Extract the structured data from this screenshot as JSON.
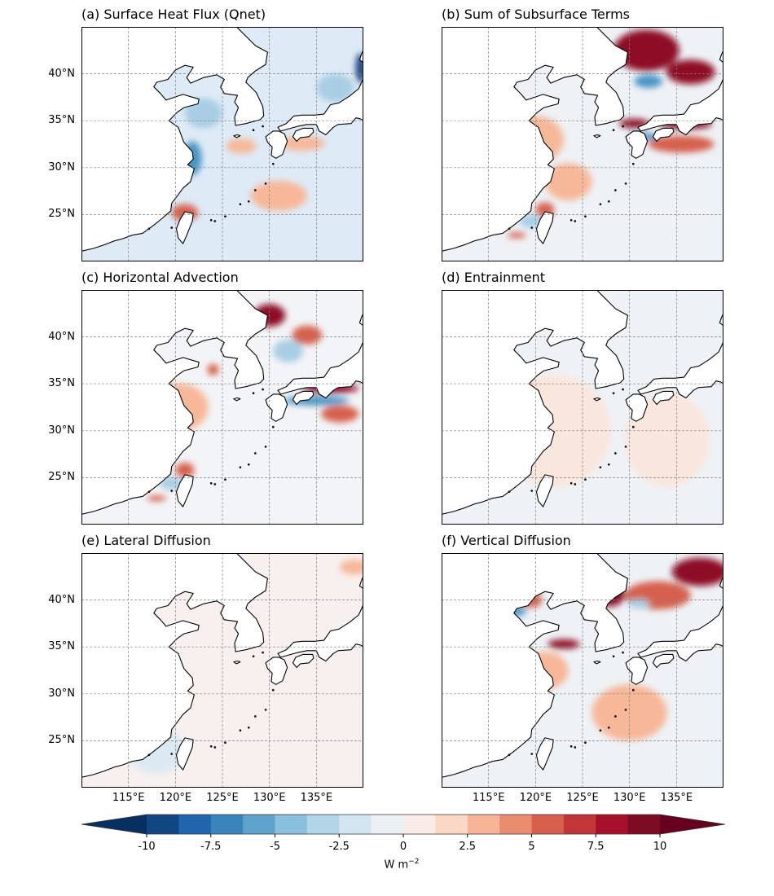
{
  "figure": {
    "panels": [
      {
        "id": "a",
        "title": "(a) Surface Heat Flux (Qnet)",
        "background": "#deebf7",
        "patches": [
          {
            "kind": "warm",
            "level": 2,
            "lon": 121.0,
            "lat": 25.2,
            "rlon": 1.4,
            "rlat": 0.9
          },
          {
            "kind": "warm",
            "level": 1,
            "lon": 127.0,
            "lat": 32.3,
            "rlon": 1.6,
            "rlat": 0.8
          },
          {
            "kind": "warm",
            "level": 1,
            "lon": 133.5,
            "lat": 32.6,
            "rlon": 2.4,
            "rlat": 0.8
          },
          {
            "kind": "cool",
            "level": 2,
            "lon": 121.8,
            "lat": 31.0,
            "rlon": 1.0,
            "rlat": 1.8
          },
          {
            "kind": "cool",
            "level": 1,
            "lon": 123.0,
            "lat": 35.8,
            "rlon": 2.0,
            "rlat": 1.6
          },
          {
            "kind": "cool",
            "level": 3,
            "lon": 139.7,
            "lat": 40.6,
            "rlon": 0.5,
            "rlat": 1.6
          },
          {
            "kind": "cool",
            "level": 1,
            "lon": 137.0,
            "lat": 38.5,
            "rlon": 2.0,
            "rlat": 1.5
          },
          {
            "kind": "warm",
            "level": 1,
            "lon": 131.0,
            "lat": 27.0,
            "rlon": 3.0,
            "rlat": 1.6
          }
        ]
      },
      {
        "id": "b",
        "title": "(b) Sum of Subsurface Terms",
        "background": "#eef2f6",
        "patches": [
          {
            "kind": "warm",
            "level": 3,
            "lon": 131.8,
            "lat": 42.5,
            "rlon": 3.5,
            "rlat": 2.2
          },
          {
            "kind": "warm",
            "level": 3,
            "lon": 136.5,
            "lat": 40.2,
            "rlon": 2.6,
            "rlat": 1.3
          },
          {
            "kind": "warm",
            "level": 3,
            "lon": 130.5,
            "lat": 34.7,
            "rlon": 1.6,
            "rlat": 0.5
          },
          {
            "kind": "warm",
            "level": 3,
            "lon": 136.0,
            "lat": 34.6,
            "rlon": 2.8,
            "rlat": 0.5
          },
          {
            "kind": "warm",
            "level": 2,
            "lon": 135.5,
            "lat": 32.5,
            "rlon": 3.5,
            "rlat": 0.9
          },
          {
            "kind": "warm",
            "level": 1,
            "lon": 120.0,
            "lat": 33.0,
            "rlon": 3.0,
            "rlat": 2.5
          },
          {
            "kind": "warm",
            "level": 1,
            "lon": 123.5,
            "lat": 28.5,
            "rlon": 2.5,
            "rlat": 2.0
          },
          {
            "kind": "warm",
            "level": 2,
            "lon": 121.0,
            "lat": 25.5,
            "rlon": 1.0,
            "rlat": 0.8
          },
          {
            "kind": "cool",
            "level": 2,
            "lon": 132.0,
            "lat": 39.2,
            "rlon": 1.5,
            "rlat": 0.7
          },
          {
            "kind": "cool",
            "level": 2,
            "lon": 131.5,
            "lat": 33.3,
            "rlon": 1.6,
            "rlat": 0.4
          },
          {
            "kind": "cool",
            "level": 1,
            "lon": 119.5,
            "lat": 24.3,
            "rlon": 1.2,
            "rlat": 0.7
          },
          {
            "kind": "warm",
            "level": 2,
            "lon": 118.0,
            "lat": 22.8,
            "rlon": 1.0,
            "rlat": 0.3
          },
          {
            "kind": "cool",
            "level": 1,
            "lon": 117.0,
            "lat": 38.8,
            "rlon": 0.9,
            "rlat": 0.5
          }
        ]
      },
      {
        "id": "c",
        "title": "(c) Horizontal Advection",
        "background": "#f3f4f7",
        "patches": [
          {
            "kind": "warm",
            "level": 3,
            "lon": 130.0,
            "lat": 42.3,
            "rlon": 1.7,
            "rlat": 1.2
          },
          {
            "kind": "warm",
            "level": 2,
            "lon": 134.0,
            "lat": 40.2,
            "rlon": 1.6,
            "rlat": 1.0
          },
          {
            "kind": "cool",
            "level": 1,
            "lon": 132.0,
            "lat": 38.5,
            "rlon": 1.6,
            "rlat": 1.2
          },
          {
            "kind": "warm",
            "level": 3,
            "lon": 136.5,
            "lat": 34.5,
            "rlon": 3.0,
            "rlat": 0.5
          },
          {
            "kind": "cool",
            "level": 2,
            "lon": 135.0,
            "lat": 33.2,
            "rlon": 3.5,
            "rlat": 0.5
          },
          {
            "kind": "warm",
            "level": 2,
            "lon": 137.5,
            "lat": 31.8,
            "rlon": 2.0,
            "rlat": 0.9
          },
          {
            "kind": "warm",
            "level": 1,
            "lon": 120.5,
            "lat": 32.5,
            "rlon": 3.0,
            "rlat": 2.5
          },
          {
            "kind": "warm",
            "level": 2,
            "lon": 121.0,
            "lat": 25.8,
            "rlon": 1.0,
            "rlat": 0.8
          },
          {
            "kind": "cool",
            "level": 1,
            "lon": 119.5,
            "lat": 24.4,
            "rlon": 1.2,
            "rlat": 0.7
          },
          {
            "kind": "warm",
            "level": 2,
            "lon": 118.0,
            "lat": 22.8,
            "rlon": 1.0,
            "rlat": 0.3
          },
          {
            "kind": "warm",
            "level": 2,
            "lon": 124.0,
            "lat": 36.5,
            "rlon": 0.6,
            "rlat": 0.6
          }
        ]
      },
      {
        "id": "d",
        "title": "(d) Entrainment",
        "background": "#eef2f6",
        "patches": [
          {
            "kind": "warm",
            "level": 0,
            "lon": 122.0,
            "lat": 30.0,
            "rlon": 6.0,
            "rlat": 6.0
          },
          {
            "kind": "warm",
            "level": 0,
            "lon": 134.0,
            "lat": 29.0,
            "rlon": 4.5,
            "rlat": 5.0
          }
        ]
      },
      {
        "id": "e",
        "title": "(e) Lateral Diffusion",
        "background": "#f7f0ee",
        "patches": [
          {
            "kind": "cool",
            "level": 0,
            "lon": 118.0,
            "lat": 24.0,
            "rlon": 3.0,
            "rlat": 2.5
          },
          {
            "kind": "warm",
            "level": 1,
            "lon": 139.0,
            "lat": 43.5,
            "rlon": 1.5,
            "rlat": 0.8
          }
        ]
      },
      {
        "id": "f",
        "title": "(f) Vertical Diffusion",
        "background": "#eef2f6",
        "patches": [
          {
            "kind": "warm",
            "level": 3,
            "lon": 137.5,
            "lat": 43.0,
            "rlon": 3.0,
            "rlat": 1.5
          },
          {
            "kind": "warm",
            "level": 3,
            "lon": 127.8,
            "lat": 40.5,
            "rlon": 1.7,
            "rlat": 1.2
          },
          {
            "kind": "warm",
            "level": 2,
            "lon": 133.0,
            "lat": 40.5,
            "rlon": 3.5,
            "rlat": 1.5
          },
          {
            "kind": "cool",
            "level": 1,
            "lon": 131.0,
            "lat": 39.6,
            "rlon": 1.2,
            "rlat": 0.5
          },
          {
            "kind": "warm",
            "level": 3,
            "lon": 123.0,
            "lat": 35.3,
            "rlon": 1.7,
            "rlat": 0.5
          },
          {
            "kind": "warm",
            "level": 2,
            "lon": 119.5,
            "lat": 40.0,
            "rlon": 1.2,
            "rlat": 0.8
          },
          {
            "kind": "cool",
            "level": 2,
            "lon": 118.0,
            "lat": 38.8,
            "rlon": 1.0,
            "rlat": 0.5
          },
          {
            "kind": "warm",
            "level": 1,
            "lon": 121.0,
            "lat": 32.5,
            "rlon": 2.5,
            "rlat": 2.0
          },
          {
            "kind": "warm",
            "level": 1,
            "lon": 130.0,
            "lat": 28.0,
            "rlon": 4.0,
            "rlat": 3.0
          }
        ]
      }
    ],
    "lat_ticks": [
      "40°N",
      "35°N",
      "30°N",
      "25°N"
    ],
    "lat_values": [
      40,
      35,
      30,
      25
    ],
    "lon_ticks": [
      "115°E",
      "120°E",
      "125°E",
      "130°E",
      "135°E"
    ],
    "lon_values": [
      115,
      120,
      125,
      130,
      135
    ],
    "extent": {
      "lon_min": 110,
      "lon_max": 140,
      "lat_min": 20,
      "lat_max": 45
    }
  },
  "colorbar": {
    "unit_base": "W m",
    "unit_exp": "−2",
    "tick_labels": [
      "-10",
      "-7.5",
      "-5",
      "-2.5",
      "0",
      "2.5",
      "5",
      "7.5",
      "10"
    ],
    "levels": [
      -10,
      -8.75,
      -7.5,
      -6.25,
      -5,
      -3.75,
      -2.5,
      -1.25,
      0,
      1.25,
      2.5,
      3.75,
      5,
      6.25,
      7.5,
      8.75,
      10
    ],
    "colors": [
      "#114781",
      "#2166ac",
      "#3a84bb",
      "#5fa2cb",
      "#8bc0dd",
      "#b2d5e8",
      "#d3e5f0",
      "#eaf0f4",
      "#f9ece6",
      "#fbd8c4",
      "#f6b596",
      "#ea8d6f",
      "#d6604d",
      "#c13639",
      "#a5102a",
      "#7b0c22"
    ],
    "under_color": "#053061",
    "over_color": "#67001f"
  },
  "map_colors": {
    "warm": [
      "#f9e6dd",
      "#f7b799",
      "#d6604d",
      "#8e0b25"
    ],
    "cool": [
      "#dce9f2",
      "#a8cde4",
      "#4a94c4",
      "#0f3d7a"
    ],
    "land": "#ffffff",
    "coast": "#000000",
    "grid": "#808080"
  }
}
